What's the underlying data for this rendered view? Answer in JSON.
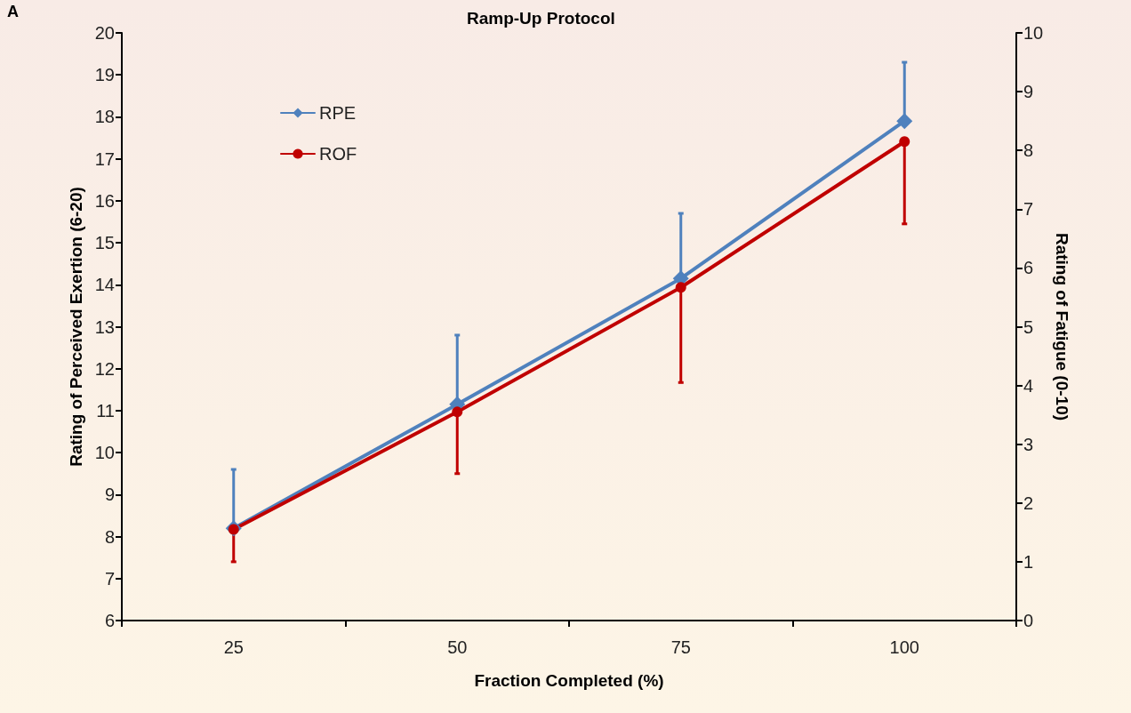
{
  "chart_data": {
    "type": "line",
    "title": "Ramp-Up Protocol",
    "xlabel": "Fraction Completed (%)",
    "ylabel": "Rating of Perceived Exertion (6-20)",
    "y2label": "Rating of Fatigue (0-10)",
    "annotations": [
      "A"
    ],
    "categories": [
      "25",
      "50",
      "75",
      "100"
    ],
    "series": [
      {
        "name": "RPE",
        "color": "#4f81bd",
        "marker": "diamond",
        "values": [
          8.2,
          11.15,
          14.15,
          17.9
        ],
        "errors": [
          [
            8.2,
            9.6
          ],
          [
            11.15,
            12.8
          ],
          [
            14.15,
            15.7
          ],
          [
            17.9,
            19.3
          ]
        ]
      },
      {
        "name": "ROF",
        "color": "#c00000",
        "marker": "circle",
        "axis": "y2",
        "values": [
          1.55,
          3.55,
          5.67,
          8.15
        ],
        "errors": [
          [
            1.0,
            1.55
          ],
          [
            2.5,
            3.55
          ],
          [
            4.05,
            5.67
          ],
          [
            6.75,
            8.15
          ]
        ]
      }
    ],
    "ylim": [
      6,
      20
    ],
    "yticks": [
      6,
      7,
      8,
      9,
      10,
      11,
      12,
      13,
      14,
      15,
      16,
      17,
      18,
      19,
      20
    ],
    "y2lim": [
      0,
      10
    ],
    "y2ticks": [
      0,
      1,
      2,
      3,
      4,
      5,
      6,
      7,
      8,
      9,
      10
    ],
    "grid": false,
    "legend": "top left",
    "line_style": "solid"
  }
}
